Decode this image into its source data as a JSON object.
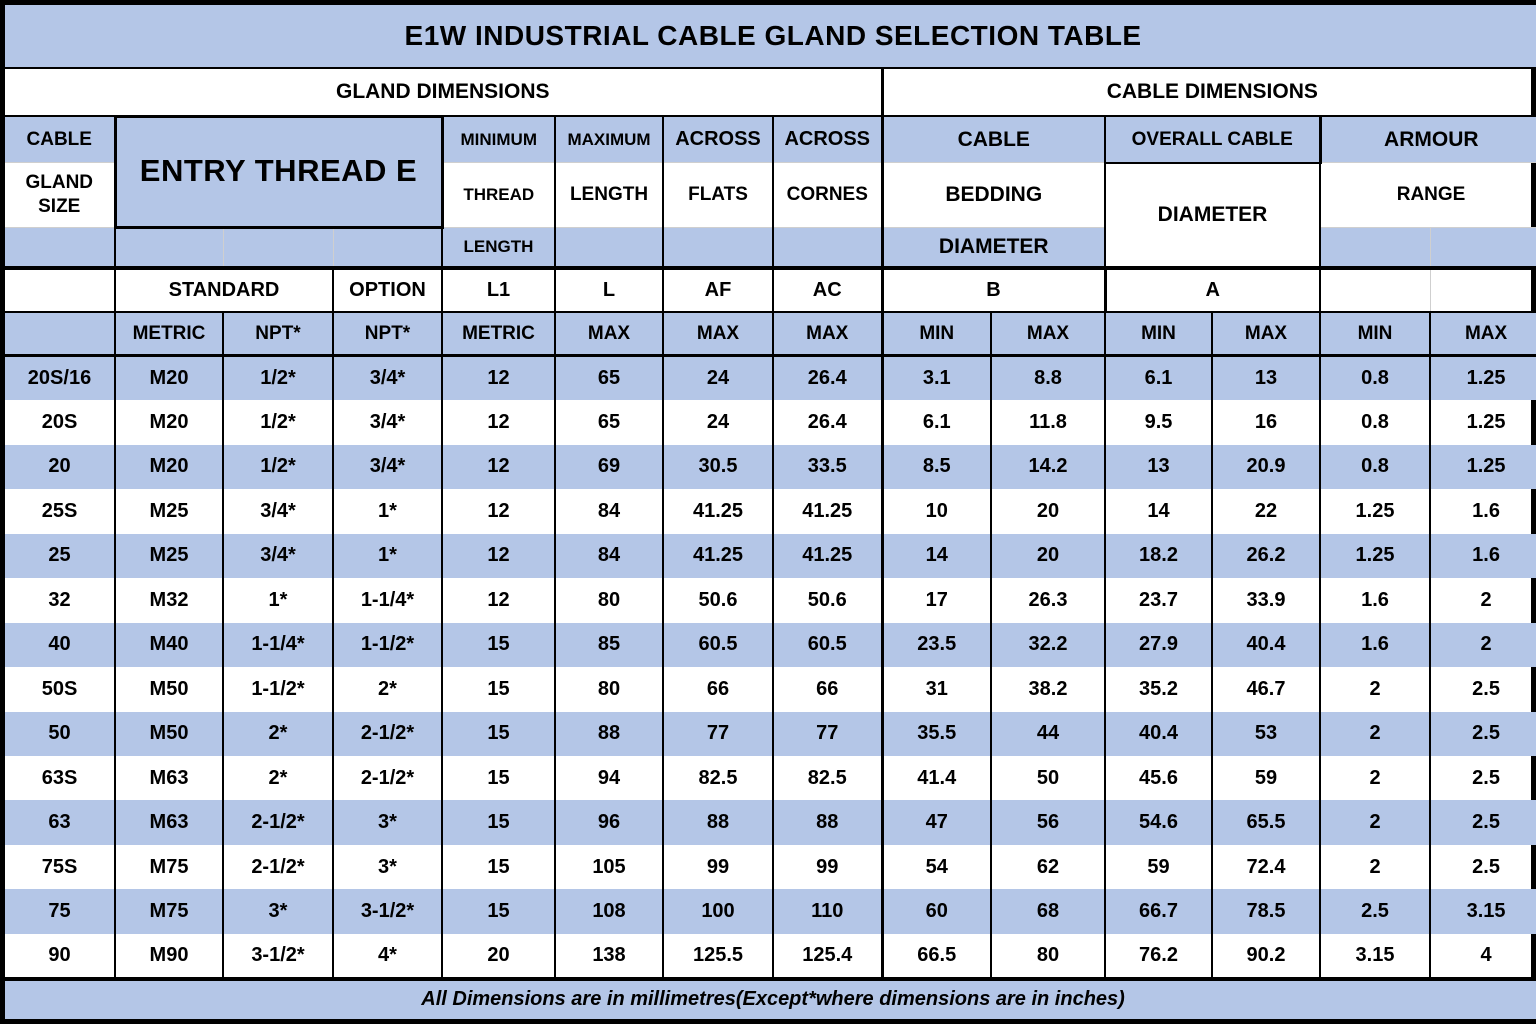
{
  "title": "E1W INDUSTRIAL CABLE GLAND SELECTION TABLE",
  "sections": {
    "gland": "GLAND DIMENSIONS",
    "cable": "CABLE DIMENSIONS"
  },
  "header": {
    "cable_gland_size": [
      "CABLE",
      "GLAND",
      "SIZE"
    ],
    "entry_thread": "ENTRY THREAD E",
    "min_thread_length": [
      "MINIMUM",
      "THREAD",
      "LENGTH"
    ],
    "max_length": [
      "MAXIMUM",
      "LENGTH"
    ],
    "across_flats": [
      "ACROSS",
      "FLATS"
    ],
    "across_cornes": [
      "ACROSS",
      "CORNES"
    ],
    "cable_bedding_diameter": [
      "CABLE",
      "BEDDING",
      "DIAMETER"
    ],
    "overall_cable_diameter": [
      "OVERALL CABLE",
      "DIAMETER"
    ],
    "armour_range": [
      "ARMOUR",
      "RANGE"
    ]
  },
  "subheader": {
    "standard": "STANDARD",
    "option": "OPTION",
    "l1": "L1",
    "l": "L",
    "af": "AF",
    "ac": "AC",
    "b": "B",
    "a": "A"
  },
  "units": [
    "",
    "METRIC",
    "NPT*",
    "NPT*",
    "METRIC",
    "MAX",
    "MAX",
    "MAX",
    "MIN",
    "MAX",
    "MIN",
    "MAX",
    "MIN",
    "MAX"
  ],
  "rows": [
    [
      "20S/16",
      "M20",
      "1/2*",
      "3/4*",
      "12",
      "65",
      "24",
      "26.4",
      "3.1",
      "8.8",
      "6.1",
      "13",
      "0.8",
      "1.25"
    ],
    [
      "20S",
      "M20",
      "1/2*",
      "3/4*",
      "12",
      "65",
      "24",
      "26.4",
      "6.1",
      "11.8",
      "9.5",
      "16",
      "0.8",
      "1.25"
    ],
    [
      "20",
      "M20",
      "1/2*",
      "3/4*",
      "12",
      "69",
      "30.5",
      "33.5",
      "8.5",
      "14.2",
      "13",
      "20.9",
      "0.8",
      "1.25"
    ],
    [
      "25S",
      "M25",
      "3/4*",
      "1*",
      "12",
      "84",
      "41.25",
      "41.25",
      "10",
      "20",
      "14",
      "22",
      "1.25",
      "1.6"
    ],
    [
      "25",
      "M25",
      "3/4*",
      "1*",
      "12",
      "84",
      "41.25",
      "41.25",
      "14",
      "20",
      "18.2",
      "26.2",
      "1.25",
      "1.6"
    ],
    [
      "32",
      "M32",
      "1*",
      "1-1/4*",
      "12",
      "80",
      "50.6",
      "50.6",
      "17",
      "26.3",
      "23.7",
      "33.9",
      "1.6",
      "2"
    ],
    [
      "40",
      "M40",
      "1-1/4*",
      "1-1/2*",
      "15",
      "85",
      "60.5",
      "60.5",
      "23.5",
      "32.2",
      "27.9",
      "40.4",
      "1.6",
      "2"
    ],
    [
      "50S",
      "M50",
      "1-1/2*",
      "2*",
      "15",
      "80",
      "66",
      "66",
      "31",
      "38.2",
      "35.2",
      "46.7",
      "2",
      "2.5"
    ],
    [
      "50",
      "M50",
      "2*",
      "2-1/2*",
      "15",
      "88",
      "77",
      "77",
      "35.5",
      "44",
      "40.4",
      "53",
      "2",
      "2.5"
    ],
    [
      "63S",
      "M63",
      "2*",
      "2-1/2*",
      "15",
      "94",
      "82.5",
      "82.5",
      "41.4",
      "50",
      "45.6",
      "59",
      "2",
      "2.5"
    ],
    [
      "63",
      "M63",
      "2-1/2*",
      "3*",
      "15",
      "96",
      "88",
      "88",
      "47",
      "56",
      "54.6",
      "65.5",
      "2",
      "2.5"
    ],
    [
      "75S",
      "M75",
      "2-1/2*",
      "3*",
      "15",
      "105",
      "99",
      "99",
      "54",
      "62",
      "59",
      "72.4",
      "2",
      "2.5"
    ],
    [
      "75",
      "M75",
      "3*",
      "3-1/2*",
      "15",
      "108",
      "100",
      "110",
      "60",
      "68",
      "66.7",
      "78.5",
      "2.5",
      "3.15"
    ],
    [
      "90",
      "M90",
      "3-1/2*",
      "4*",
      "20",
      "138",
      "125.5",
      "125.4",
      "66.5",
      "80",
      "76.2",
      "90.2",
      "3.15",
      "4"
    ]
  ],
  "footer": "All Dimensions are in millimetres(Except*where dimensions are in inches)",
  "colors": {
    "accent_blue": "#b4c6e7",
    "grid_black": "#000000",
    "grid_faint": "#cfcfcf",
    "cell_white": "#ffffff"
  }
}
